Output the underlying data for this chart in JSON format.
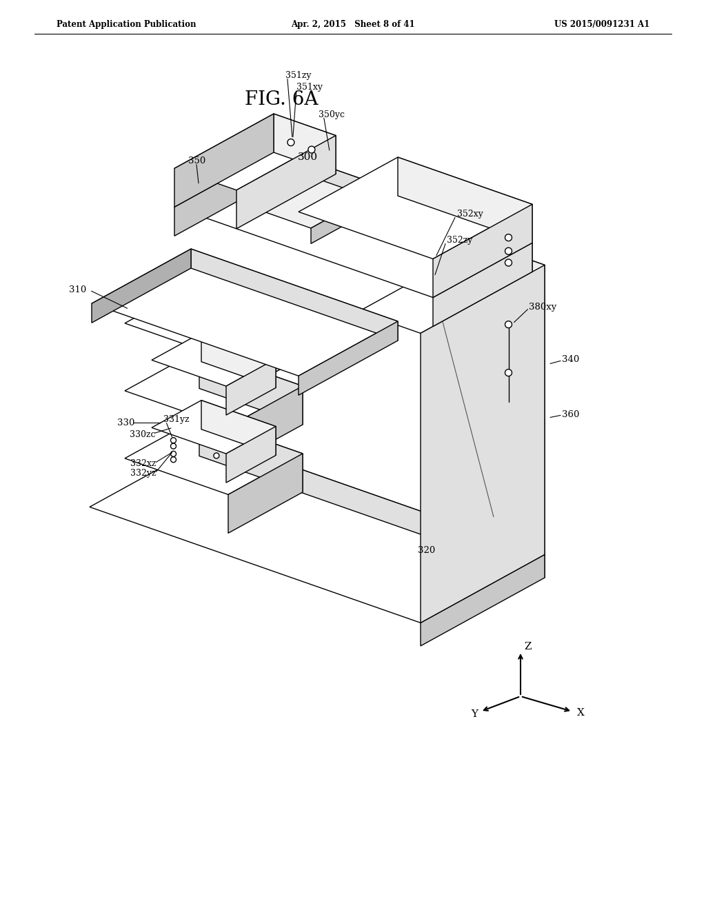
{
  "bg_color": "#ffffff",
  "header_left": "Patent Application Publication",
  "header_center": "Apr. 2, 2015   Sheet 8 of 41",
  "header_right": "US 2015/0091231 A1",
  "fig_title": "FIG. 6A",
  "lc": "#000000",
  "lw": 1.0,
  "fc_white": "#ffffff",
  "fc_light": "#f0f0f0",
  "fc_mid": "#e0e0e0",
  "fc_dark": "#c8c8c8",
  "fc_vdark": "#b0b0b0"
}
